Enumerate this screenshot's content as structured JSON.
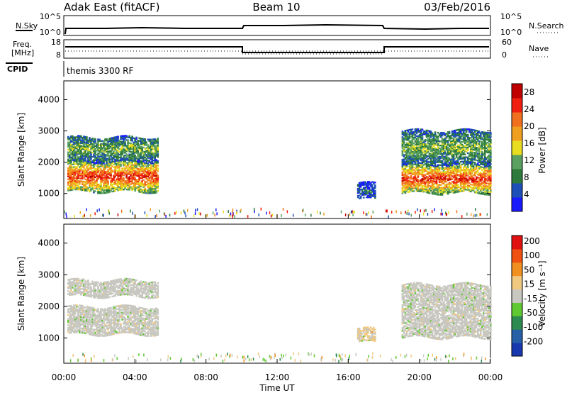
{
  "header": {
    "station": "Adak East (fitACF)",
    "beam": "Beam 10",
    "date": "03/Feb/2016"
  },
  "top_panel": {
    "left_label": "N.Sky",
    "right_label": "N.Search",
    "left_ticks": [
      "10^5",
      "10^0"
    ],
    "right_ticks": [
      "10^5",
      "10^0"
    ]
  },
  "freq_panel": {
    "label_line1": "Freq.",
    "label_line2": "[MHz]",
    "right_label": "Nave",
    "left_ticks": [
      "18",
      "8"
    ],
    "right_ticks": [
      "60",
      "0"
    ]
  },
  "cpid_panel": {
    "label": "CPID",
    "text": "themis 3300 RF"
  },
  "x_axis": {
    "label": "Time UT",
    "ticks": [
      "00:00",
      "04:00",
      "08:00",
      "12:00",
      "16:00",
      "20:00",
      "00:00"
    ]
  },
  "colors": {
    "power": [
      "#1a1aff",
      "#1e4fb8",
      "#2d7a3c",
      "#5aa060",
      "#e8dd20",
      "#f0a020",
      "#f07020",
      "#f02010",
      "#c00000"
    ],
    "velocity": [
      "#e01010",
      "#f05010",
      "#f09020",
      "#f0c880",
      "#c8c8c0",
      "#60c830",
      "#2d8a50",
      "#2860a8",
      "#1838b0"
    ]
  },
  "chart_data": [
    {
      "type": "heatmap",
      "title": "Power",
      "ylabel": "Slant Range [km]",
      "xlabel": "Time UT",
      "ylim": [
        200,
        4600
      ],
      "xlim_hours": [
        0,
        24
      ],
      "yticks": [
        "1000",
        "2000",
        "3000",
        "4000"
      ],
      "colorbar": {
        "label": "Power [dB]",
        "ticks": [
          "4",
          "8",
          "12",
          "16",
          "20",
          "24",
          "28"
        ],
        "range": [
          0,
          30
        ]
      },
      "regions": [
        {
          "t_start": 0.2,
          "t_end": 5.3,
          "r_min": 1050,
          "r_max": 2000,
          "value": 24
        },
        {
          "t_start": 0.2,
          "t_end": 5.3,
          "r_min": 2000,
          "r_max": 2800,
          "value": 12
        },
        {
          "t_start": 16.5,
          "t_end": 17.5,
          "r_min": 800,
          "r_max": 1300,
          "value": 6
        },
        {
          "t_start": 19.0,
          "t_end": 24.0,
          "r_min": 1000,
          "r_max": 1900,
          "value": 24
        },
        {
          "t_start": 19.0,
          "t_end": 24.0,
          "r_min": 1900,
          "r_max": 3000,
          "value": 12
        }
      ]
    },
    {
      "type": "heatmap",
      "title": "Velocity",
      "ylabel": "Slant Range [km]",
      "xlabel": "Time UT",
      "ylim": [
        200,
        4600
      ],
      "xlim_hours": [
        0,
        24
      ],
      "yticks": [
        "1000",
        "2000",
        "3000",
        "4000"
      ],
      "colorbar": {
        "label": "Velocity [m s⁻¹]",
        "ticks": [
          "200",
          "100",
          "50",
          "15",
          "-15",
          "-50",
          "-100",
          "-200"
        ],
        "range": [
          -250,
          250
        ]
      },
      "regions": [
        {
          "t_start": 0.2,
          "t_end": 5.3,
          "r_min": 1100,
          "r_max": 2000,
          "value": 0
        },
        {
          "t_start": 0.2,
          "t_end": 5.3,
          "r_min": 2300,
          "r_max": 2800,
          "value": 0
        },
        {
          "t_start": 16.5,
          "t_end": 17.5,
          "r_min": 850,
          "r_max": 1300,
          "value": 30
        },
        {
          "t_start": 19.0,
          "t_end": 24.0,
          "r_min": 1000,
          "r_max": 1900,
          "value": 0
        },
        {
          "t_start": 19.0,
          "t_end": 24.0,
          "r_min": 1900,
          "r_max": 2700,
          "value": 0
        }
      ]
    }
  ]
}
